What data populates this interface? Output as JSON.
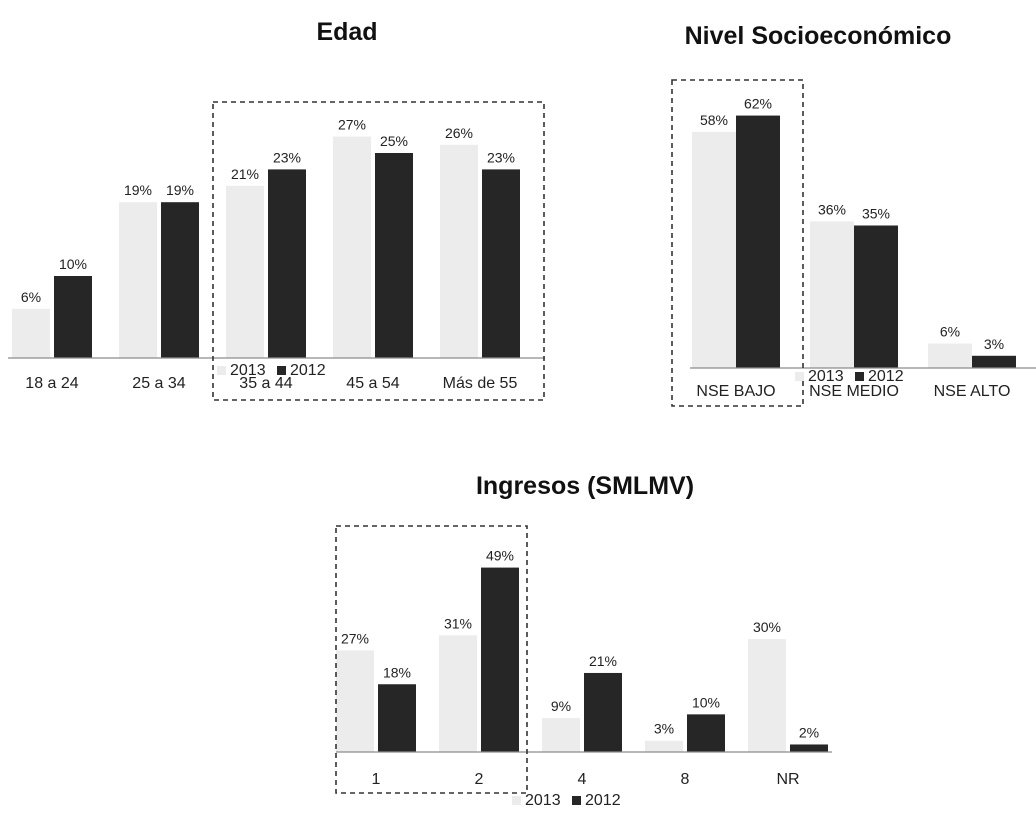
{
  "colors": {
    "s2013": "#ececec",
    "s2012": "#262626",
    "axis": "#8c8c8c",
    "frame": "#333333"
  },
  "chart_data": [
    {
      "type": "bar",
      "title": "Edad",
      "categories": [
        "18 a 24",
        "25 a 34",
        "35 a 44",
        "45 a 54",
        "Más de 55"
      ],
      "series": [
        {
          "name": "2013",
          "values": [
            6,
            19,
            21,
            27,
            26
          ],
          "labels": [
            "6%",
            "19%",
            "21%",
            "27%",
            "26%"
          ]
        },
        {
          "name": "2012",
          "values": [
            10,
            19,
            23,
            25,
            23
          ],
          "labels": [
            "10%",
            "19%",
            "23%",
            "25%",
            "23%"
          ]
        }
      ],
      "ylim": [
        0,
        30
      ],
      "highlight": [
        "35 a 44",
        "Más de 55"
      ],
      "legend": "bottom"
    },
    {
      "type": "bar",
      "title": "Nivel Socioeconómico",
      "categories": [
        "NSE BAJO",
        "NSE MEDIO",
        "NSE ALTO"
      ],
      "series": [
        {
          "name": "2013",
          "values": [
            58,
            36,
            6
          ],
          "labels": [
            "58%",
            "36%",
            "6%"
          ]
        },
        {
          "name": "2012",
          "values": [
            62,
            35,
            3
          ],
          "labels": [
            "62%",
            "35%",
            "3%"
          ]
        }
      ],
      "ylim": [
        0,
        70
      ],
      "highlight": [
        "NSE BAJO",
        "NSE BAJO"
      ],
      "legend": "bottom"
    },
    {
      "type": "bar",
      "title": "Ingresos (SMLMV)",
      "categories": [
        "1",
        "2",
        "4",
        "8",
        "NR"
      ],
      "series": [
        {
          "name": "2013",
          "values": [
            27,
            31,
            9,
            3,
            30
          ],
          "labels": [
            "27%",
            "31%",
            "9%",
            "3%",
            "30%"
          ]
        },
        {
          "name": "2012",
          "values": [
            18,
            49,
            21,
            10,
            2
          ],
          "labels": [
            "18%",
            "49%",
            "21%",
            "10%",
            "2%"
          ]
        }
      ],
      "ylim": [
        0,
        55
      ],
      "highlight": [
        "1",
        "2"
      ],
      "legend": "bottom"
    }
  ]
}
